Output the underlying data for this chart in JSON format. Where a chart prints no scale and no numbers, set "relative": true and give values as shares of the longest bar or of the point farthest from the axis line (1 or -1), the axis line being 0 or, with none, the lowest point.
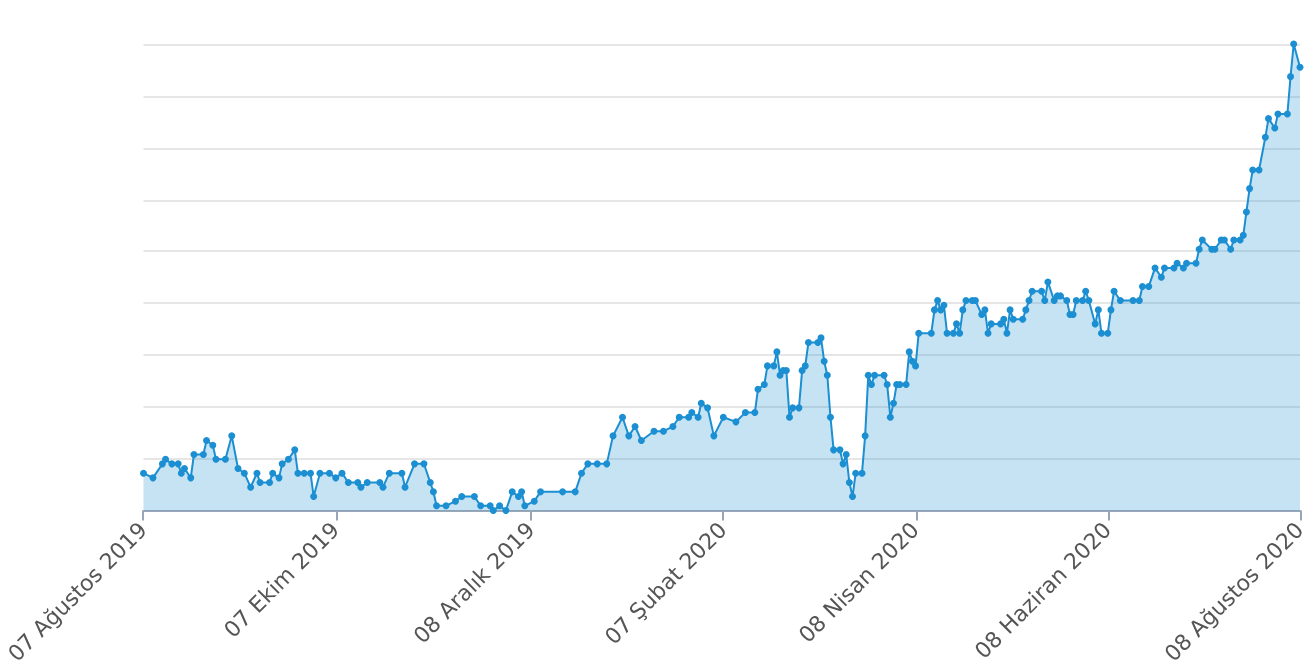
{
  "chart_data": {
    "type": "area",
    "relative": true,
    "grid": "y",
    "marker": "circle",
    "xlim": [
      "2019-08-07",
      "2020-08-08"
    ],
    "xticks": [
      {
        "value": "2019-08-07",
        "label": "07 Ağustos 2019"
      },
      {
        "value": "2019-10-07",
        "label": "07 Ekim 2019"
      },
      {
        "value": "2019-12-08",
        "label": "08 Aralık 2019"
      },
      {
        "value": "2020-02-07",
        "label": "07 Şubat 2020"
      },
      {
        "value": "2020-04-08",
        "label": "08 Nisan 2020"
      },
      {
        "value": "2020-06-08",
        "label": "08 Haziran 2020"
      },
      {
        "value": "2020-08-08",
        "label": "08 Ağustos 2020"
      }
    ],
    "x": [
      "2019-08-07",
      "2019-08-10",
      "2019-08-13",
      "2019-08-14",
      "2019-08-16",
      "2019-08-18",
      "2019-08-19",
      "2019-08-20",
      "2019-08-22",
      "2019-08-23",
      "2019-08-26",
      "2019-08-27",
      "2019-08-29",
      "2019-08-30",
      "2019-09-02",
      "2019-09-04",
      "2019-09-06",
      "2019-09-08",
      "2019-09-10",
      "2019-09-12",
      "2019-09-13",
      "2019-09-16",
      "2019-09-17",
      "2019-09-19",
      "2019-09-20",
      "2019-09-22",
      "2019-09-24",
      "2019-09-25",
      "2019-09-27",
      "2019-09-29",
      "2019-09-30",
      "2019-10-02",
      "2019-10-05",
      "2019-10-07",
      "2019-10-09",
      "2019-10-11",
      "2019-10-14",
      "2019-10-15",
      "2019-10-17",
      "2019-10-21",
      "2019-10-22",
      "2019-10-24",
      "2019-10-28",
      "2019-10-29",
      "2019-11-01",
      "2019-11-04",
      "2019-11-06",
      "2019-11-07",
      "2019-11-08",
      "2019-11-11",
      "2019-11-14",
      "2019-11-16",
      "2019-11-20",
      "2019-11-22",
      "2019-11-25",
      "2019-11-26",
      "2019-11-28",
      "2019-11-30",
      "2019-12-02",
      "2019-12-04",
      "2019-12-05",
      "2019-12-06",
      "2019-12-09",
      "2019-12-11",
      "2019-12-18",
      "2019-12-22",
      "2019-12-24",
      "2019-12-26",
      "2019-12-29",
      "2020-01-01",
      "2020-01-03",
      "2020-01-06",
      "2020-01-08",
      "2020-01-10",
      "2020-01-12",
      "2020-01-16",
      "2020-01-19",
      "2020-01-22",
      "2020-01-24",
      "2020-01-27",
      "2020-01-28",
      "2020-01-30",
      "2020-01-31",
      "2020-02-02",
      "2020-02-04",
      "2020-02-07",
      "2020-02-11",
      "2020-02-14",
      "2020-02-17",
      "2020-02-18",
      "2020-02-20",
      "2020-02-21",
      "2020-02-23",
      "2020-02-24",
      "2020-02-25",
      "2020-02-26",
      "2020-02-27",
      "2020-02-28",
      "2020-02-29",
      "2020-03-02",
      "2020-03-03",
      "2020-03-04",
      "2020-03-05",
      "2020-03-08",
      "2020-03-09",
      "2020-03-10",
      "2020-03-11",
      "2020-03-12",
      "2020-03-13",
      "2020-03-15",
      "2020-03-16",
      "2020-03-17",
      "2020-03-18",
      "2020-03-19",
      "2020-03-20",
      "2020-03-22",
      "2020-03-23",
      "2020-03-24",
      "2020-03-25",
      "2020-03-26",
      "2020-03-29",
      "2020-03-30",
      "2020-03-31",
      "2020-04-01",
      "2020-04-02",
      "2020-04-03",
      "2020-04-05",
      "2020-04-06",
      "2020-04-07",
      "2020-04-08",
      "2020-04-09",
      "2020-04-13",
      "2020-04-14",
      "2020-04-15",
      "2020-04-16",
      "2020-04-17",
      "2020-04-18",
      "2020-04-20",
      "2020-04-21",
      "2020-04-22",
      "2020-04-23",
      "2020-04-24",
      "2020-04-26",
      "2020-04-27",
      "2020-04-29",
      "2020-04-30",
      "2020-05-01",
      "2020-05-02",
      "2020-05-05",
      "2020-05-06",
      "2020-05-07",
      "2020-05-08",
      "2020-05-09",
      "2020-05-12",
      "2020-05-13",
      "2020-05-14",
      "2020-05-15",
      "2020-05-18",
      "2020-05-19",
      "2020-05-20",
      "2020-05-22",
      "2020-05-23",
      "2020-05-24",
      "2020-05-26",
      "2020-05-27",
      "2020-05-28",
      "2020-05-29",
      "2020-05-31",
      "2020-06-01",
      "2020-06-02",
      "2020-06-04",
      "2020-06-05",
      "2020-06-06",
      "2020-06-08",
      "2020-06-09",
      "2020-06-10",
      "2020-06-12",
      "2020-06-16",
      "2020-06-18",
      "2020-06-19",
      "2020-06-21",
      "2020-06-23",
      "2020-06-25",
      "2020-06-26",
      "2020-06-29",
      "2020-06-30",
      "2020-07-02",
      "2020-07-03",
      "2020-07-06",
      "2020-07-07",
      "2020-07-08",
      "2020-07-11",
      "2020-07-12",
      "2020-07-14",
      "2020-07-15",
      "2020-07-17",
      "2020-07-18",
      "2020-07-20",
      "2020-07-21",
      "2020-07-22",
      "2020-07-23",
      "2020-07-24",
      "2020-07-26",
      "2020-07-28",
      "2020-07-29",
      "2020-07-31",
      "2020-08-01",
      "2020-08-04",
      "2020-08-05",
      "2020-08-06",
      "2020-08-08"
    ],
    "series": [
      {
        "color": "#1b8fd2",
        "values": [
          0.08,
          0.07,
          0.1,
          0.11,
          0.1,
          0.1,
          0.08,
          0.09,
          0.07,
          0.12,
          0.12,
          0.15,
          0.14,
          0.11,
          0.11,
          0.16,
          0.09,
          0.08,
          0.05,
          0.08,
          0.06,
          0.06,
          0.08,
          0.07,
          0.1,
          0.11,
          0.13,
          0.08,
          0.08,
          0.08,
          0.03,
          0.08,
          0.08,
          0.07,
          0.08,
          0.06,
          0.06,
          0.05,
          0.06,
          0.06,
          0.05,
          0.08,
          0.08,
          0.05,
          0.1,
          0.1,
          0.06,
          0.04,
          0.01,
          0.01,
          0.02,
          0.03,
          0.03,
          0.01,
          0.01,
          0.0,
          0.01,
          0.0,
          0.04,
          0.03,
          0.04,
          0.01,
          0.02,
          0.04,
          0.04,
          0.04,
          0.08,
          0.1,
          0.1,
          0.1,
          0.16,
          0.2,
          0.16,
          0.18,
          0.15,
          0.17,
          0.17,
          0.18,
          0.2,
          0.2,
          0.21,
          0.2,
          0.23,
          0.22,
          0.16,
          0.2,
          0.19,
          0.21,
          0.21,
          0.26,
          0.27,
          0.31,
          0.31,
          0.34,
          0.29,
          0.3,
          0.3,
          0.2,
          0.22,
          0.22,
          0.3,
          0.31,
          0.36,
          0.36,
          0.37,
          0.32,
          0.29,
          0.2,
          0.13,
          0.13,
          0.1,
          0.12,
          0.06,
          0.03,
          0.08,
          0.08,
          0.16,
          0.29,
          0.27,
          0.29,
          0.29,
          0.27,
          0.2,
          0.23,
          0.27,
          0.27,
          0.27,
          0.34,
          0.32,
          0.31,
          0.38,
          0.38,
          0.43,
          0.45,
          0.43,
          0.44,
          0.38,
          0.38,
          0.4,
          0.38,
          0.43,
          0.45,
          0.45,
          0.45,
          0.42,
          0.43,
          0.38,
          0.4,
          0.4,
          0.41,
          0.38,
          0.43,
          0.41,
          0.41,
          0.43,
          0.45,
          0.47,
          0.47,
          0.45,
          0.49,
          0.45,
          0.46,
          0.46,
          0.45,
          0.42,
          0.42,
          0.45,
          0.45,
          0.47,
          0.45,
          0.4,
          0.43,
          0.38,
          0.38,
          0.43,
          0.47,
          0.45,
          0.45,
          0.45,
          0.48,
          0.48,
          0.52,
          0.5,
          0.52,
          0.52,
          0.53,
          0.52,
          0.53,
          0.53,
          0.56,
          0.58,
          0.56,
          0.56,
          0.58,
          0.58,
          0.56,
          0.58,
          0.58,
          0.59,
          0.64,
          0.69,
          0.73,
          0.73,
          0.8,
          0.84,
          0.82,
          0.85,
          0.85,
          0.93,
          1,
          0.95
        ]
      }
    ]
  }
}
